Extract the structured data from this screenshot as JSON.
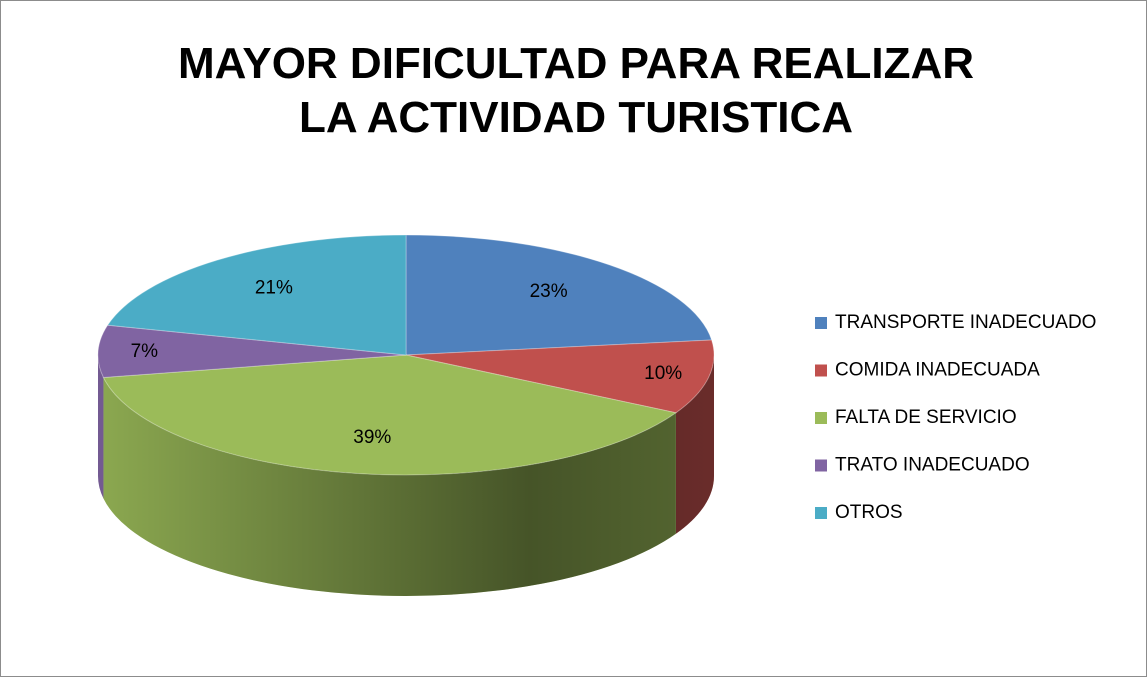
{
  "chart_data": {
    "type": "pie3d",
    "title": "MAYOR DIFICULTAD PARA REALIZAR LA ACTIVIDAD TURISTICA",
    "categories": [
      "TRANSPORTE INADECUADO",
      "COMIDA INADECUADA",
      "FALTA DE SERVICIO",
      "TRATO INADECUADO",
      "OTROS"
    ],
    "values": [
      23,
      10,
      39,
      7,
      21
    ],
    "value_labels": [
      "23%",
      "10%",
      "39%",
      "7%",
      "21%"
    ],
    "colors": [
      "#4f81bd",
      "#c0504d",
      "#9bbb59",
      "#8064a2",
      "#4bacc6"
    ],
    "legend": "right"
  }
}
